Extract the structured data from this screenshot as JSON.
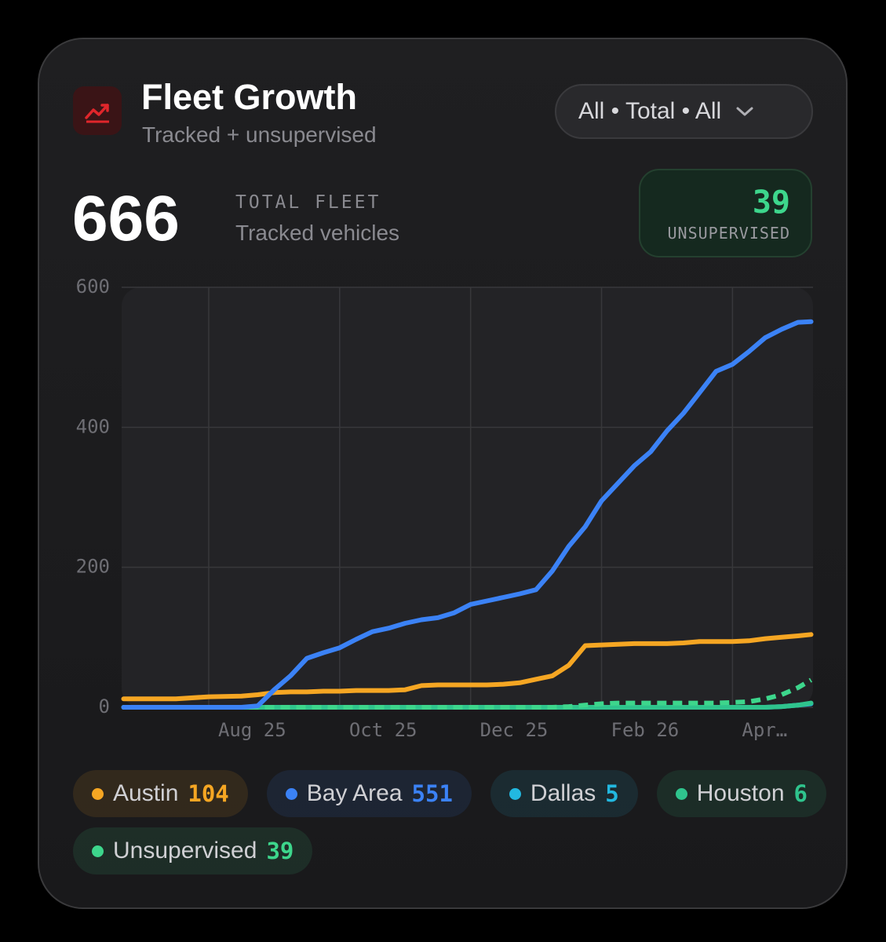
{
  "header": {
    "title": "Fleet Growth",
    "subtitle": "Tracked + unsupervised",
    "filter": "All • Total • All"
  },
  "stats": {
    "total": {
      "value": 666,
      "label": "TOTAL FLEET",
      "caption": "Tracked vehicles"
    },
    "unsupervised": {
      "value": 39,
      "label": "UNSUPERVISED"
    }
  },
  "chart_data": {
    "type": "line",
    "x": [
      6.7,
      7,
      7.5,
      8,
      8.5,
      8.75,
      9,
      9.25,
      9.5,
      9.75,
      10,
      10.25,
      10.5,
      10.75,
      11,
      11.25,
      11.5,
      11.75,
      12,
      12.25,
      12.5,
      12.75,
      13,
      13.25,
      13.5,
      13.75,
      14,
      14.25,
      14.5,
      14.75,
      15,
      15.25,
      15.5,
      15.75,
      16,
      16.25,
      16.5,
      16.75,
      17,
      17.2
    ],
    "series": [
      {
        "name": "Austin",
        "color": "#f5a623",
        "values": [
          12,
          12,
          12,
          15,
          16,
          18,
          21,
          22,
          22,
          23,
          23,
          24,
          24,
          24,
          25,
          31,
          32,
          32,
          32,
          32,
          33,
          35,
          40,
          45,
          60,
          88,
          89,
          90,
          91,
          91,
          91,
          92,
          94,
          94,
          94,
          95,
          98,
          100,
          102,
          104
        ]
      },
      {
        "name": "Bay Area",
        "color": "#3b82f6",
        "values": [
          0,
          0,
          0,
          0,
          0,
          2,
          25,
          45,
          70,
          78,
          85,
          97,
          108,
          113,
          120,
          125,
          128,
          135,
          147,
          152,
          157,
          162,
          168,
          195,
          230,
          258,
          295,
          320,
          345,
          365,
          395,
          420,
          450,
          480,
          490,
          508,
          528,
          540,
          550,
          551
        ]
      },
      {
        "name": "Dallas",
        "color": "#22b8e0",
        "values": [
          0,
          0,
          0,
          0,
          0,
          0,
          0,
          0,
          0,
          0,
          0,
          0,
          0,
          0,
          0,
          0,
          0,
          0,
          0,
          0,
          0,
          0,
          0,
          0,
          0,
          0,
          0,
          0,
          0,
          0,
          0,
          0,
          0,
          0,
          0,
          0,
          0,
          1,
          3,
          5
        ]
      },
      {
        "name": "Houston",
        "color": "#2fc48d",
        "values": [
          0,
          0,
          0,
          0,
          0,
          0,
          0,
          0,
          0,
          0,
          0,
          0,
          0,
          0,
          0,
          0,
          0,
          0,
          0,
          0,
          0,
          0,
          0,
          0,
          0,
          0,
          0,
          0,
          0,
          0,
          0,
          0,
          0,
          0,
          0,
          0,
          0,
          1,
          3,
          6
        ]
      },
      {
        "name": "Unsupervised",
        "color": "#3dd68c",
        "dashed": true,
        "values": [
          0,
          0,
          0,
          0,
          0,
          0,
          0,
          0,
          0,
          0,
          0,
          0,
          0,
          0,
          0,
          0,
          0,
          0,
          0,
          0,
          0,
          0,
          0,
          0,
          1,
          3,
          5,
          6,
          6,
          6,
          6,
          6,
          6,
          6,
          7,
          8,
          12,
          18,
          28,
          39
        ]
      }
    ],
    "xlim": [
      6.67,
      17.23
    ],
    "xticks": [
      {
        "value": 8,
        "label": "Aug 25"
      },
      {
        "value": 10,
        "label": "Oct 25"
      },
      {
        "value": 12,
        "label": "Dec 25"
      },
      {
        "value": 14,
        "label": "Feb 26"
      },
      {
        "value": 16,
        "label": "Apr…"
      }
    ],
    "ylim": [
      0,
      600
    ],
    "yticks": [
      0,
      200,
      400,
      600
    ],
    "grid": true
  }
}
